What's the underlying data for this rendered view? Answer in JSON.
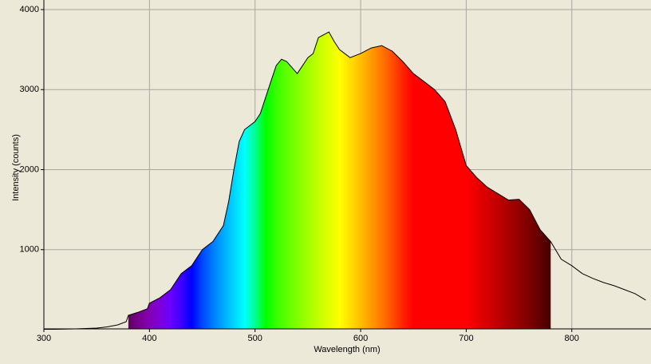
{
  "chart_data": {
    "type": "line",
    "x_label": "Wavelength (nm)",
    "y_label": "Intensity (counts)",
    "x": [
      300,
      310,
      320,
      330,
      340,
      350,
      360,
      370,
      378,
      380,
      390,
      398,
      400,
      410,
      420,
      430,
      440,
      450,
      460,
      470,
      475,
      480,
      485,
      490,
      500,
      505,
      510,
      515,
      520,
      525,
      530,
      540,
      545,
      550,
      555,
      560,
      570,
      575,
      580,
      590,
      600,
      610,
      620,
      630,
      640,
      650,
      660,
      670,
      680,
      690,
      700,
      710,
      720,
      730,
      740,
      750,
      760,
      770,
      780,
      790,
      800,
      810,
      820,
      830,
      840,
      850,
      860,
      870
    ],
    "series": [
      {
        "color": "#000000",
        "values": [
          5,
          5,
          8,
          10,
          15,
          20,
          35,
          60,
          100,
          180,
          220,
          260,
          330,
          400,
          500,
          700,
          800,
          1000,
          1100,
          1300,
          1600,
          2000,
          2350,
          2500,
          2600,
          2700,
          2900,
          3100,
          3300,
          3380,
          3350,
          3200,
          3300,
          3400,
          3450,
          3650,
          3720,
          3600,
          3500,
          3400,
          3450,
          3520,
          3550,
          3480,
          3350,
          3200,
          3100,
          3000,
          2850,
          2500,
          2050,
          1900,
          1780,
          1700,
          1620,
          1630,
          1500,
          1250,
          1100,
          880,
          800,
          700,
          640,
          590,
          550,
          500,
          450,
          370
        ]
      }
    ],
    "fill_xlim": [
      380,
      780
    ],
    "xlim": [
      300,
      875
    ],
    "ylim": [
      0,
      4000
    ],
    "xticks": [
      300,
      400,
      500,
      600,
      700,
      800
    ],
    "yticks": [
      1000,
      2000,
      3000,
      4000
    ],
    "grid": true
  }
}
